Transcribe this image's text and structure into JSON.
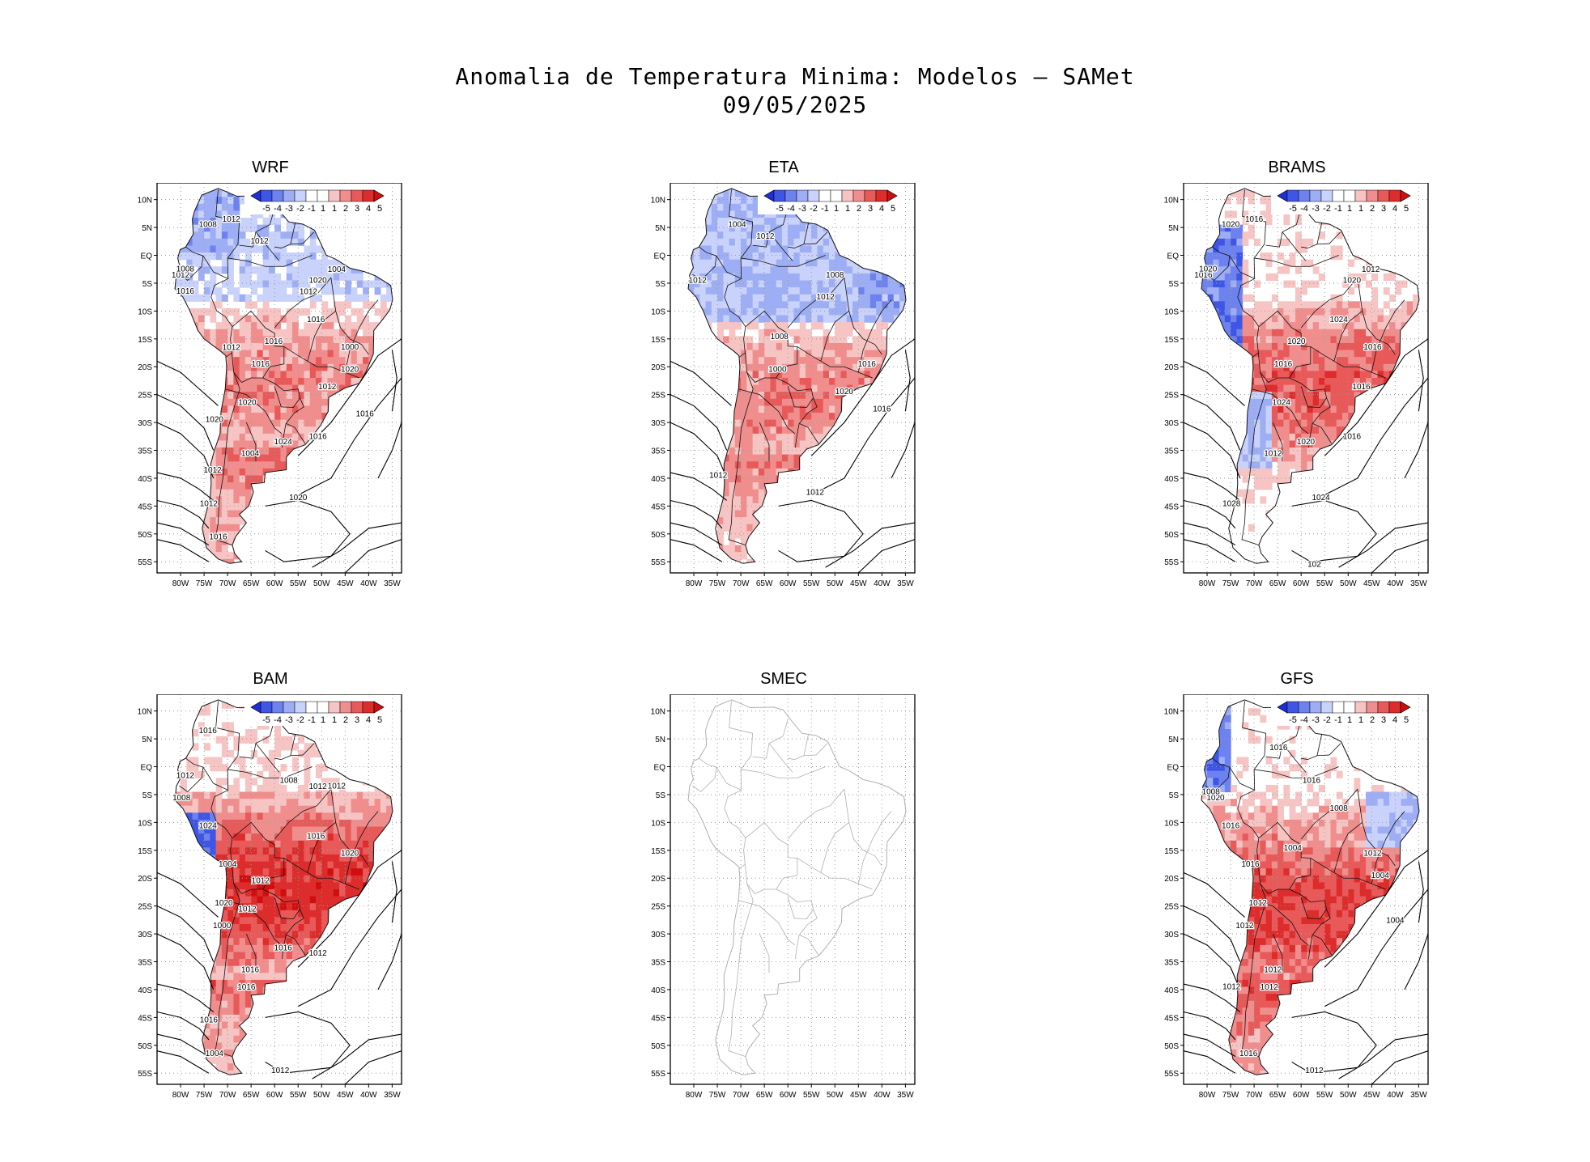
{
  "header": {
    "title": "Anomalia de Temperatura Minima: Modelos — SAMet",
    "date": "09/05/2025"
  },
  "axes": {
    "lat_labels": [
      "10N",
      "5N",
      "EQ",
      "5S",
      "10S",
      "15S",
      "20S",
      "25S",
      "30S",
      "35S",
      "40S",
      "45S",
      "50S",
      "55S"
    ],
    "lon_labels": [
      "80W",
      "75W",
      "70W",
      "65W",
      "60W",
      "55W",
      "50W",
      "45W",
      "40W",
      "35W"
    ]
  },
  "colorbar": {
    "labels": [
      "-5",
      "-4",
      "-3",
      "-2",
      "-1",
      "1",
      "1",
      "2",
      "3",
      "4",
      "5"
    ],
    "colors": [
      "#1f2ed8",
      "#3f55e4",
      "#6d82ee",
      "#9eaef4",
      "#c9d2fa",
      "#ffffff",
      "#ffffff",
      "#f7c4c4",
      "#f08e8e",
      "#e85a5a",
      "#dd2c2c",
      "#cf0f0f"
    ]
  },
  "chart_data": [
    {
      "type": "map",
      "model": "WRF",
      "has_data": true,
      "colorbar": true,
      "isobar_labels": [
        "1012",
        "1016",
        "1012",
        "1020",
        "1016",
        "1012",
        "1012",
        "1020",
        "1012",
        "1016",
        "1012",
        "1016",
        "1012",
        "1020",
        "1012",
        "1020",
        "1016",
        "1024",
        "1016",
        "1008",
        "1016",
        "1020",
        "1012",
        "1008",
        "1004",
        "1000",
        "1004"
      ]
    },
    {
      "type": "map",
      "model": "ETA",
      "has_data": true,
      "colorbar": true,
      "isobar_labels": [
        "1012",
        "1012",
        "1016",
        "1012",
        "1016",
        "1012",
        "1008",
        "1020",
        "1012",
        "1004",
        "1008",
        "1000"
      ]
    },
    {
      "type": "map",
      "model": "BRAMS",
      "has_data": true,
      "colorbar": true,
      "isobar_labels": [
        "1016",
        "1020",
        "1016",
        "1024",
        "1016",
        "1020",
        "1016",
        "1020",
        "1016",
        "1020",
        "1024",
        "1024",
        "1028",
        "1020",
        "1012",
        "1016",
        "1012",
        "102"
      ]
    },
    {
      "type": "map",
      "model": "BAM",
      "has_data": true,
      "colorbar": true,
      "isobar_labels": [
        "1012",
        "1012",
        "1016",
        "1012",
        "1012",
        "1016",
        "1012",
        "1016",
        "1016",
        "1012",
        "1020",
        "1016",
        "1012",
        "1008",
        "1024",
        "1020",
        "1016",
        "1012",
        "1008",
        "1004",
        "1000",
        "1004"
      ]
    },
    {
      "type": "map",
      "model": "SMEC",
      "has_data": false,
      "colorbar": false,
      "isobar_labels": []
    },
    {
      "type": "map",
      "model": "GFS",
      "has_data": true,
      "colorbar": true,
      "isobar_labels": [
        "1012",
        "1012",
        "1012",
        "1016",
        "1016",
        "1012",
        "1012",
        "1016",
        "1020",
        "1016",
        "1012",
        "1016",
        "1016",
        "1008",
        "1004",
        "1012",
        "1004",
        "1008",
        "1004"
      ]
    }
  ]
}
